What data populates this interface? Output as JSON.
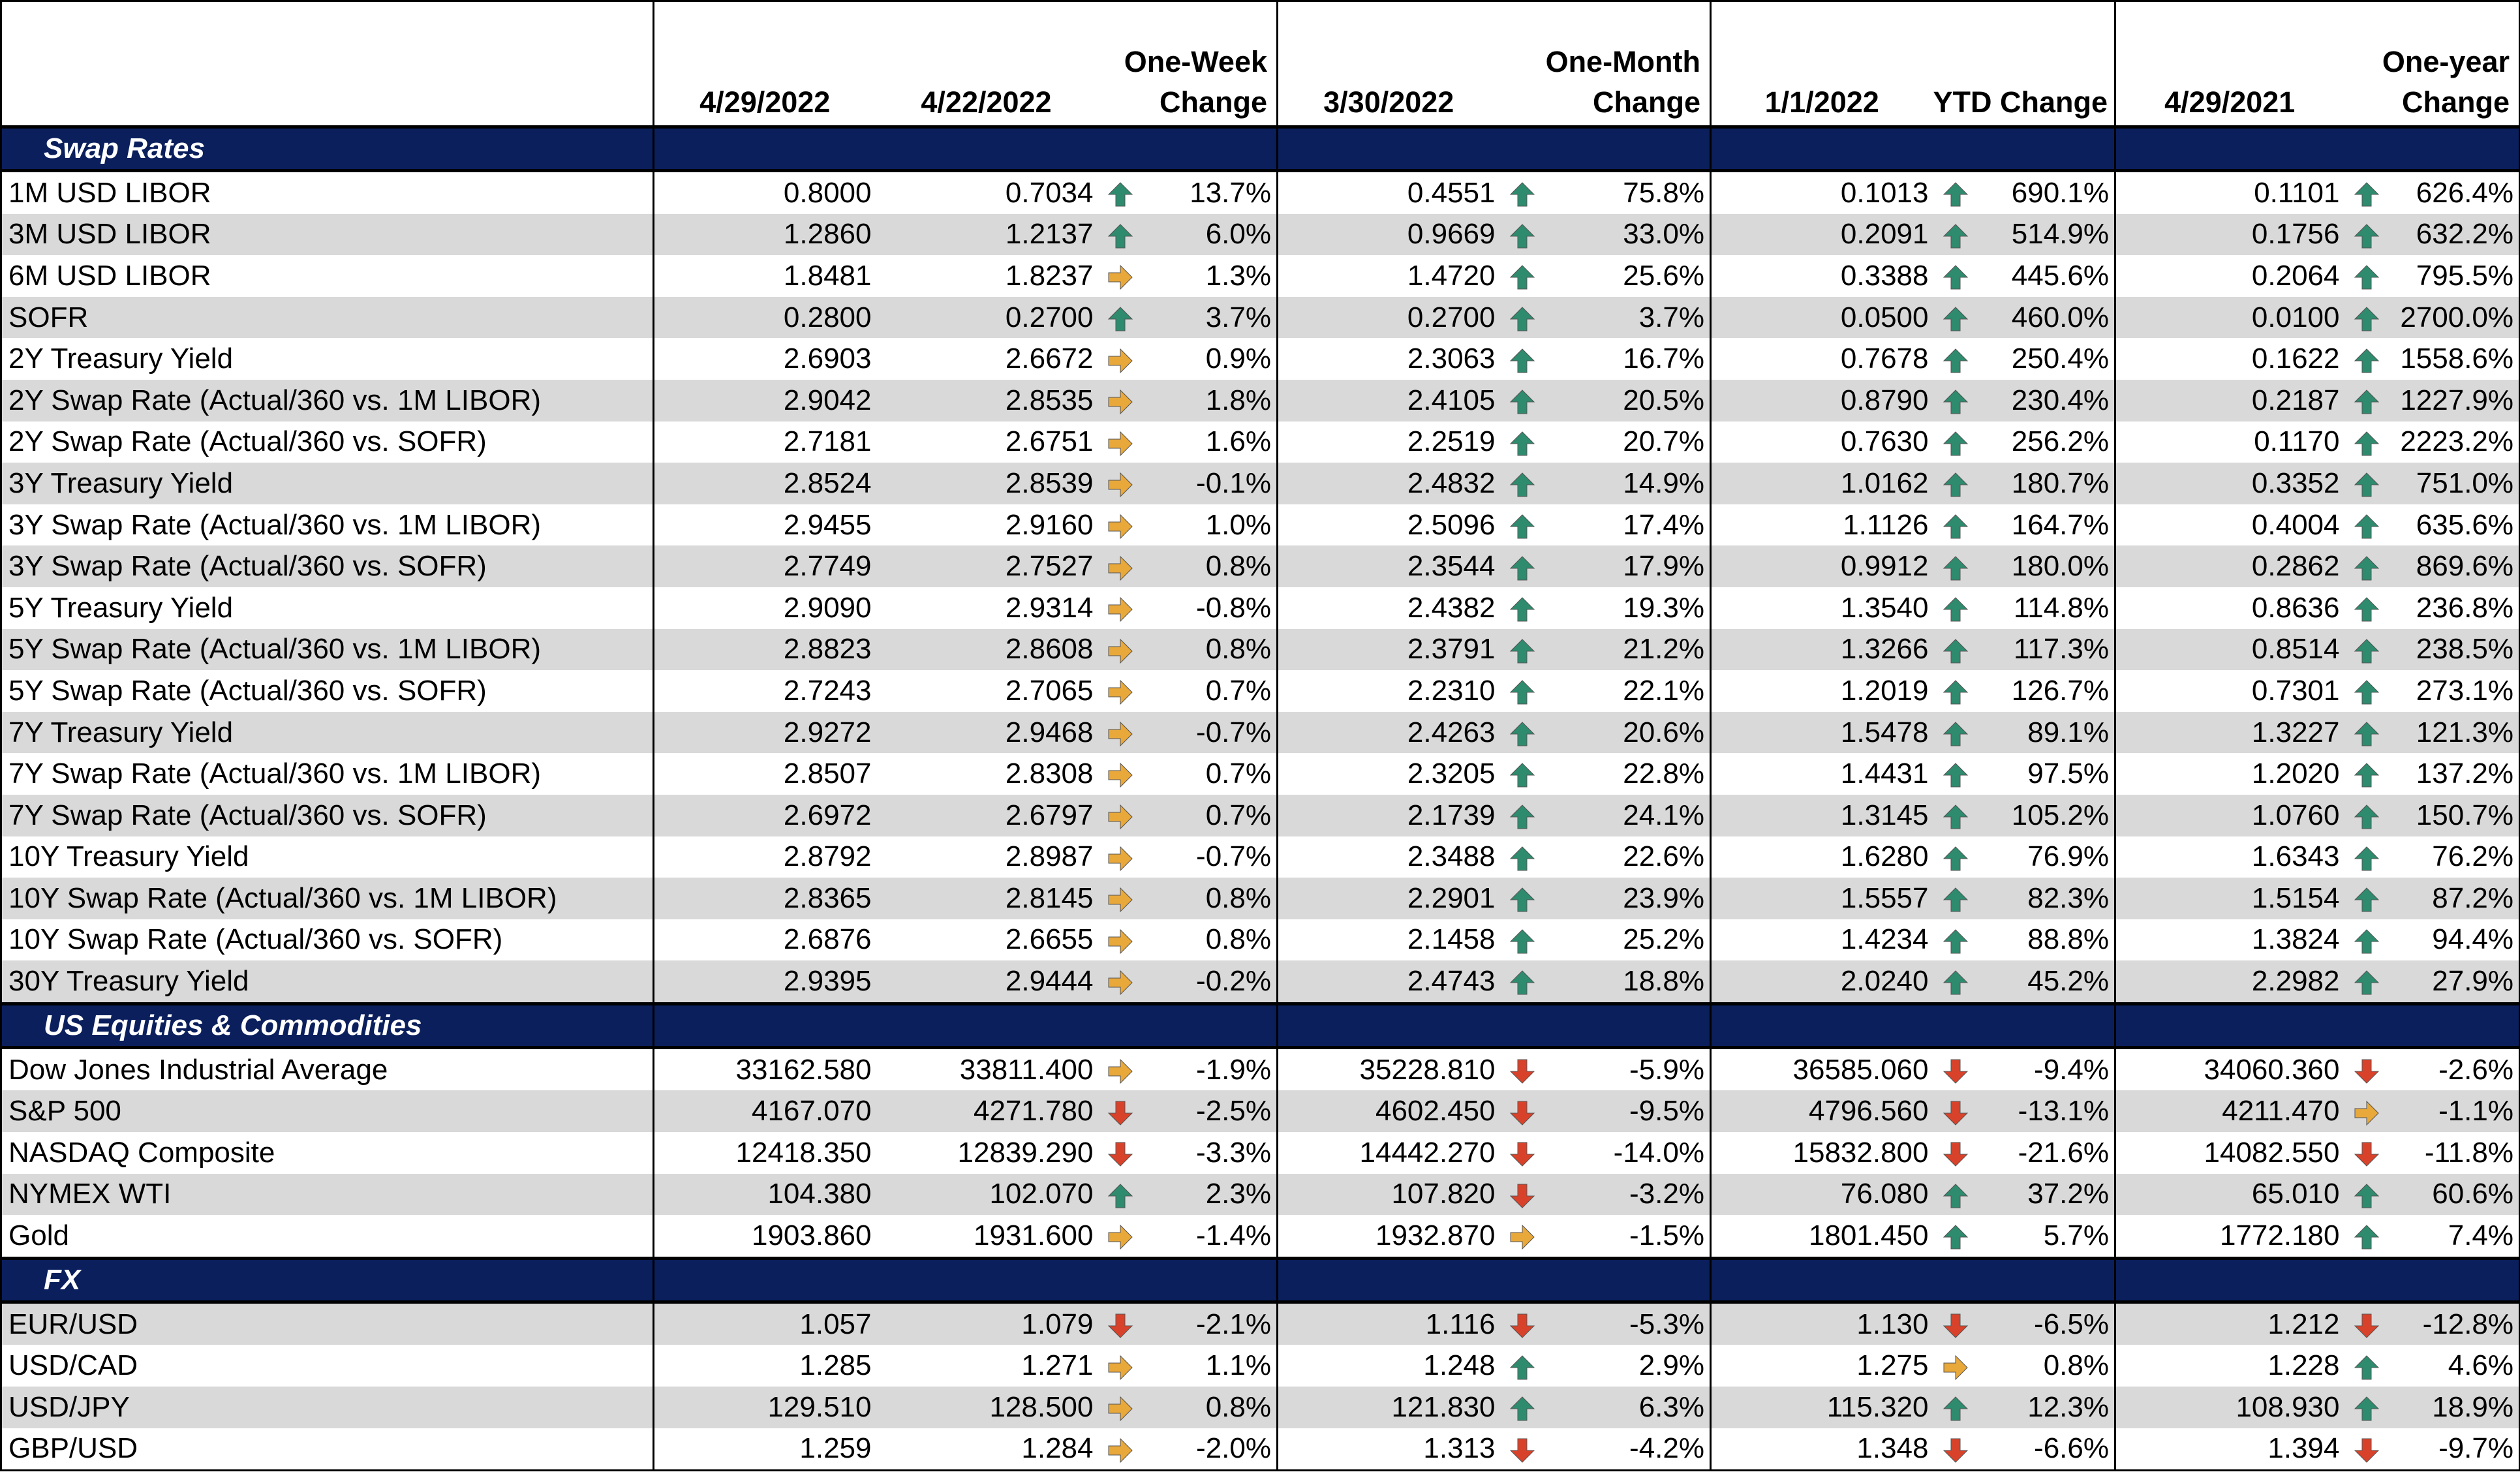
{
  "columns": {
    "c1": "4/29/2022",
    "c2": "4/22/2022",
    "c3": "One-Week Change",
    "c3a": "One-Week",
    "c3b": "Change",
    "c4": "3/30/2022",
    "c5a": "One-Month",
    "c5b": "Change",
    "c6": "1/1/2022",
    "c7": "YTD Change",
    "c8": "4/29/2021",
    "c9a": "One-year",
    "c9b": "Change"
  },
  "colors": {
    "header_band": "#0a1f5c",
    "alt_row": "#d9d9d9",
    "up": "#2e8b6e",
    "side": "#e8a83a",
    "down": "#d9422a"
  },
  "sections": [
    {
      "title": "Swap Rates",
      "rows": [
        {
          "name": "1M USD LIBOR",
          "v0": "0.8000",
          "v1": "0.7034",
          "a1": "up",
          "w": "13.7%",
          "v2": "0.4551",
          "a2": "up",
          "m": "75.8%",
          "v3": "0.1013",
          "a3": "up",
          "y": "690.1%",
          "v4": "0.1101",
          "a4": "up",
          "yr": "626.4%"
        },
        {
          "name": "3M USD LIBOR",
          "v0": "1.2860",
          "v1": "1.2137",
          "a1": "up",
          "w": "6.0%",
          "v2": "0.9669",
          "a2": "up",
          "m": "33.0%",
          "v3": "0.2091",
          "a3": "up",
          "y": "514.9%",
          "v4": "0.1756",
          "a4": "up",
          "yr": "632.2%"
        },
        {
          "name": "6M USD LIBOR",
          "v0": "1.8481",
          "v1": "1.8237",
          "a1": "side",
          "w": "1.3%",
          "v2": "1.4720",
          "a2": "up",
          "m": "25.6%",
          "v3": "0.3388",
          "a3": "up",
          "y": "445.6%",
          "v4": "0.2064",
          "a4": "up",
          "yr": "795.5%"
        },
        {
          "name": "SOFR",
          "v0": "0.2800",
          "v1": "0.2700",
          "a1": "up",
          "w": "3.7%",
          "v2": "0.2700",
          "a2": "up",
          "m": "3.7%",
          "v3": "0.0500",
          "a3": "up",
          "y": "460.0%",
          "v4": "0.0100",
          "a4": "up",
          "yr": "2700.0%"
        },
        {
          "name": "2Y Treasury Yield",
          "v0": "2.6903",
          "v1": "2.6672",
          "a1": "side",
          "w": "0.9%",
          "v2": "2.3063",
          "a2": "up",
          "m": "16.7%",
          "v3": "0.7678",
          "a3": "up",
          "y": "250.4%",
          "v4": "0.1622",
          "a4": "up",
          "yr": "1558.6%"
        },
        {
          "name": "2Y Swap Rate (Actual/360 vs. 1M LIBOR)",
          "v0": "2.9042",
          "v1": "2.8535",
          "a1": "side",
          "w": "1.8%",
          "v2": "2.4105",
          "a2": "up",
          "m": "20.5%",
          "v3": "0.8790",
          "a3": "up",
          "y": "230.4%",
          "v4": "0.2187",
          "a4": "up",
          "yr": "1227.9%"
        },
        {
          "name": "2Y Swap Rate (Actual/360 vs. SOFR)",
          "v0": "2.7181",
          "v1": "2.6751",
          "a1": "side",
          "w": "1.6%",
          "v2": "2.2519",
          "a2": "up",
          "m": "20.7%",
          "v3": "0.7630",
          "a3": "up",
          "y": "256.2%",
          "v4": "0.1170",
          "a4": "up",
          "yr": "2223.2%"
        },
        {
          "name": "3Y Treasury Yield",
          "v0": "2.8524",
          "v1": "2.8539",
          "a1": "side",
          "w": "-0.1%",
          "v2": "2.4832",
          "a2": "up",
          "m": "14.9%",
          "v3": "1.0162",
          "a3": "up",
          "y": "180.7%",
          "v4": "0.3352",
          "a4": "up",
          "yr": "751.0%"
        },
        {
          "name": "3Y Swap Rate (Actual/360 vs. 1M LIBOR)",
          "v0": "2.9455",
          "v1": "2.9160",
          "a1": "side",
          "w": "1.0%",
          "v2": "2.5096",
          "a2": "up",
          "m": "17.4%",
          "v3": "1.1126",
          "a3": "up",
          "y": "164.7%",
          "v4": "0.4004",
          "a4": "up",
          "yr": "635.6%"
        },
        {
          "name": "3Y Swap Rate (Actual/360 vs. SOFR)",
          "v0": "2.7749",
          "v1": "2.7527",
          "a1": "side",
          "w": "0.8%",
          "v2": "2.3544",
          "a2": "up",
          "m": "17.9%",
          "v3": "0.9912",
          "a3": "up",
          "y": "180.0%",
          "v4": "0.2862",
          "a4": "up",
          "yr": "869.6%"
        },
        {
          "name": "5Y Treasury Yield",
          "v0": "2.9090",
          "v1": "2.9314",
          "a1": "side",
          "w": "-0.8%",
          "v2": "2.4382",
          "a2": "up",
          "m": "19.3%",
          "v3": "1.3540",
          "a3": "up",
          "y": "114.8%",
          "v4": "0.8636",
          "a4": "up",
          "yr": "236.8%"
        },
        {
          "name": "5Y Swap Rate (Actual/360 vs. 1M LIBOR)",
          "v0": "2.8823",
          "v1": "2.8608",
          "a1": "side",
          "w": "0.8%",
          "v2": "2.3791",
          "a2": "up",
          "m": "21.2%",
          "v3": "1.3266",
          "a3": "up",
          "y": "117.3%",
          "v4": "0.8514",
          "a4": "up",
          "yr": "238.5%"
        },
        {
          "name": "5Y Swap Rate (Actual/360 vs. SOFR)",
          "v0": "2.7243",
          "v1": "2.7065",
          "a1": "side",
          "w": "0.7%",
          "v2": "2.2310",
          "a2": "up",
          "m": "22.1%",
          "v3": "1.2019",
          "a3": "up",
          "y": "126.7%",
          "v4": "0.7301",
          "a4": "up",
          "yr": "273.1%"
        },
        {
          "name": "7Y Treasury Yield",
          "v0": "2.9272",
          "v1": "2.9468",
          "a1": "side",
          "w": "-0.7%",
          "v2": "2.4263",
          "a2": "up",
          "m": "20.6%",
          "v3": "1.5478",
          "a3": "up",
          "y": "89.1%",
          "v4": "1.3227",
          "a4": "up",
          "yr": "121.3%"
        },
        {
          "name": "7Y Swap Rate (Actual/360 vs. 1M LIBOR)",
          "v0": "2.8507",
          "v1": "2.8308",
          "a1": "side",
          "w": "0.7%",
          "v2": "2.3205",
          "a2": "up",
          "m": "22.8%",
          "v3": "1.4431",
          "a3": "up",
          "y": "97.5%",
          "v4": "1.2020",
          "a4": "up",
          "yr": "137.2%"
        },
        {
          "name": "7Y Swap Rate (Actual/360 vs. SOFR)",
          "v0": "2.6972",
          "v1": "2.6797",
          "a1": "side",
          "w": "0.7%",
          "v2": "2.1739",
          "a2": "up",
          "m": "24.1%",
          "v3": "1.3145",
          "a3": "up",
          "y": "105.2%",
          "v4": "1.0760",
          "a4": "up",
          "yr": "150.7%"
        },
        {
          "name": "10Y Treasury Yield",
          "v0": "2.8792",
          "v1": "2.8987",
          "a1": "side",
          "w": "-0.7%",
          "v2": "2.3488",
          "a2": "up",
          "m": "22.6%",
          "v3": "1.6280",
          "a3": "up",
          "y": "76.9%",
          "v4": "1.6343",
          "a4": "up",
          "yr": "76.2%"
        },
        {
          "name": "10Y Swap Rate (Actual/360 vs. 1M LIBOR)",
          "v0": "2.8365",
          "v1": "2.8145",
          "a1": "side",
          "w": "0.8%",
          "v2": "2.2901",
          "a2": "up",
          "m": "23.9%",
          "v3": "1.5557",
          "a3": "up",
          "y": "82.3%",
          "v4": "1.5154",
          "a4": "up",
          "yr": "87.2%"
        },
        {
          "name": "10Y Swap Rate (Actual/360 vs. SOFR)",
          "v0": "2.6876",
          "v1": "2.6655",
          "a1": "side",
          "w": "0.8%",
          "v2": "2.1458",
          "a2": "up",
          "m": "25.2%",
          "v3": "1.4234",
          "a3": "up",
          "y": "88.8%",
          "v4": "1.3824",
          "a4": "up",
          "yr": "94.4%"
        },
        {
          "name": "30Y Treasury Yield",
          "v0": "2.9395",
          "v1": "2.9444",
          "a1": "side",
          "w": "-0.2%",
          "v2": "2.4743",
          "a2": "up",
          "m": "18.8%",
          "v3": "2.0240",
          "a3": "up",
          "y": "45.2%",
          "v4": "2.2982",
          "a4": "up",
          "yr": "27.9%"
        }
      ]
    },
    {
      "title": "US Equities & Commodities",
      "rows": [
        {
          "name": "Dow Jones Industrial Average",
          "v0": "33162.580",
          "v1": "33811.400",
          "a1": "side",
          "w": "-1.9%",
          "v2": "35228.810",
          "a2": "down",
          "m": "-5.9%",
          "v3": "36585.060",
          "a3": "down",
          "y": "-9.4%",
          "v4": "34060.360",
          "a4": "down",
          "yr": "-2.6%"
        },
        {
          "name": "S&P 500",
          "v0": "4167.070",
          "v1": "4271.780",
          "a1": "down",
          "w": "-2.5%",
          "v2": "4602.450",
          "a2": "down",
          "m": "-9.5%",
          "v3": "4796.560",
          "a3": "down",
          "y": "-13.1%",
          "v4": "4211.470",
          "a4": "side",
          "yr": "-1.1%"
        },
        {
          "name": "NASDAQ Composite",
          "v0": "12418.350",
          "v1": "12839.290",
          "a1": "down",
          "w": "-3.3%",
          "v2": "14442.270",
          "a2": "down",
          "m": "-14.0%",
          "v3": "15832.800",
          "a3": "down",
          "y": "-21.6%",
          "v4": "14082.550",
          "a4": "down",
          "yr": "-11.8%"
        },
        {
          "name": "NYMEX WTI",
          "v0": "104.380",
          "v1": "102.070",
          "a1": "up",
          "w": "2.3%",
          "v2": "107.820",
          "a2": "down",
          "m": "-3.2%",
          "v3": "76.080",
          "a3": "up",
          "y": "37.2%",
          "v4": "65.010",
          "a4": "up",
          "yr": "60.6%"
        },
        {
          "name": "Gold",
          "v0": "1903.860",
          "v1": "1931.600",
          "a1": "side",
          "w": "-1.4%",
          "v2": "1932.870",
          "a2": "side",
          "m": "-1.5%",
          "v3": "1801.450",
          "a3": "up",
          "y": "5.7%",
          "v4": "1772.180",
          "a4": "up",
          "yr": "7.4%"
        }
      ]
    },
    {
      "title": "FX",
      "rows": [
        {
          "name": "EUR/USD",
          "v0": "1.057",
          "v1": "1.079",
          "a1": "down",
          "w": "-2.1%",
          "v2": "1.116",
          "a2": "down",
          "m": "-5.3%",
          "v3": "1.130",
          "a3": "down",
          "y": "-6.5%",
          "v4": "1.212",
          "a4": "down",
          "yr": "-12.8%"
        },
        {
          "name": "USD/CAD",
          "v0": "1.285",
          "v1": "1.271",
          "a1": "side",
          "w": "1.1%",
          "v2": "1.248",
          "a2": "up",
          "m": "2.9%",
          "v3": "1.275",
          "a3": "side",
          "y": "0.8%",
          "v4": "1.228",
          "a4": "up",
          "yr": "4.6%"
        },
        {
          "name": "USD/JPY",
          "v0": "129.510",
          "v1": "128.500",
          "a1": "side",
          "w": "0.8%",
          "v2": "121.830",
          "a2": "up",
          "m": "6.3%",
          "v3": "115.320",
          "a3": "up",
          "y": "12.3%",
          "v4": "108.930",
          "a4": "up",
          "yr": "18.9%"
        },
        {
          "name": "GBP/USD",
          "v0": "1.259",
          "v1": "1.284",
          "a1": "side",
          "w": "-2.0%",
          "v2": "1.313",
          "a2": "down",
          "m": "-4.2%",
          "v3": "1.348",
          "a3": "down",
          "y": "-6.6%",
          "v4": "1.394",
          "a4": "down",
          "yr": "-9.7%"
        }
      ]
    }
  ]
}
